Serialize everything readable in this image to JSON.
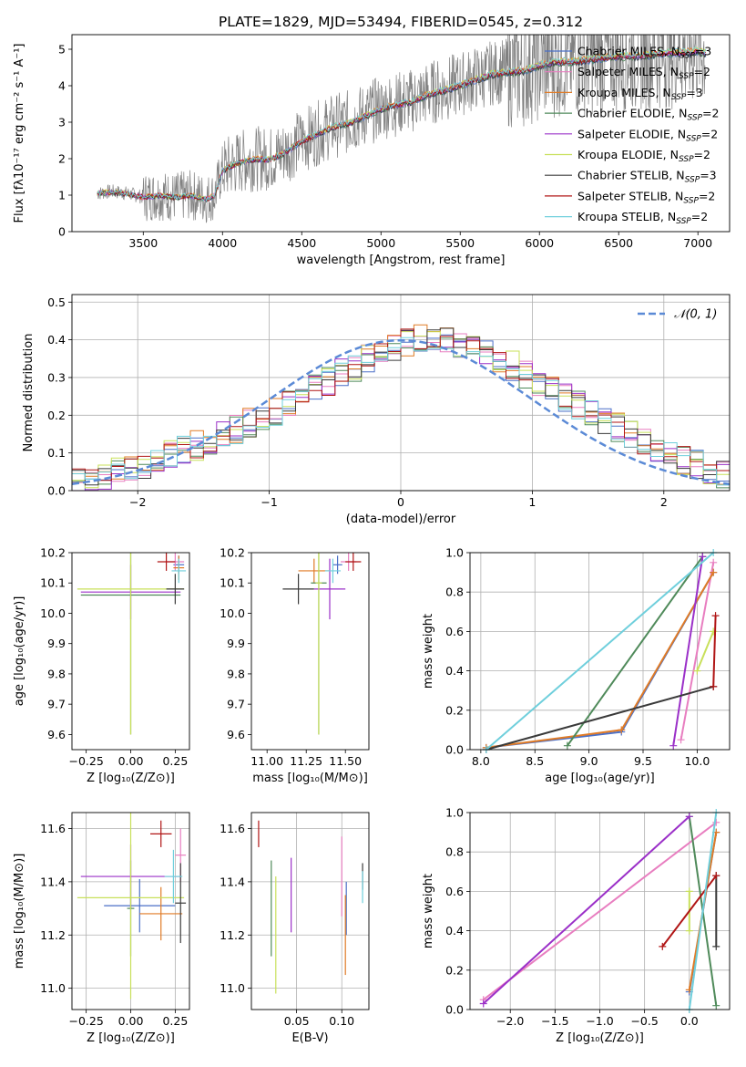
{
  "figure_title": "PLATE=1829, MJD=53494, FIBERID=0545, z=0.312",
  "colors": {
    "Chabrier MILES": "#4a6fc7",
    "Salpeter MILES": "#e87ec0",
    "Kroupa MILES": "#e07b26",
    "Chabrier ELODIE": "#4f8a5a",
    "Salpeter ELODIE": "#9b30c8",
    "Kroupa ELODIE": "#c8e05a",
    "Chabrier STELIB": "#3a3a3a",
    "Salpeter STELIB": "#b01515",
    "Kroupa STELIB": "#6fcfdc",
    "data": "#808080",
    "normal": "#5b8ad6"
  },
  "chart_data": [
    {
      "id": "spectrum",
      "type": "line",
      "xlabel": "wavelength [Angstrom, rest frame]",
      "ylabel": "Flux [f",
      "ylabel_tex": "λ10⁻¹⁷ erg cm⁻² s⁻¹ A⁻¹]",
      "xlim": [
        3050,
        7200
      ],
      "ylim": [
        0,
        5.4
      ],
      "xticks": [
        "3500",
        "4000",
        "4500",
        "5000",
        "5500",
        "6000",
        "6500",
        "7000"
      ],
      "yticks": [
        "0",
        "1",
        "2",
        "3",
        "4",
        "5"
      ],
      "model_flux": {
        "x": [
          3210,
          3300,
          3400,
          3500,
          3600,
          3700,
          3800,
          3900,
          3950,
          4000,
          4100,
          4200,
          4300,
          4400,
          4500,
          4600,
          4700,
          4800,
          4900,
          5000,
          5100,
          5200,
          5300,
          5400,
          5500,
          5600,
          5700,
          5800,
          5900,
          6000,
          6100,
          6200,
          6300,
          6400,
          6500,
          6600,
          6700,
          6800,
          6900,
          7000,
          7050
        ],
        "y": [
          1.05,
          1.1,
          1.05,
          0.95,
          1.0,
          0.95,
          1.0,
          0.9,
          1.0,
          1.7,
          1.9,
          2.0,
          2.0,
          2.2,
          2.5,
          2.7,
          2.9,
          3.0,
          3.2,
          3.4,
          3.5,
          3.6,
          3.8,
          3.9,
          4.05,
          4.2,
          4.35,
          4.4,
          4.45,
          4.6,
          4.7,
          4.7,
          4.75,
          4.8,
          4.85,
          4.85,
          4.9,
          4.95,
          4.95,
          5.0,
          4.95
        ]
      },
      "legend": [
        {
          "name": "Chabrier MILES",
          "nssp": "3"
        },
        {
          "name": "Salpeter MILES",
          "nssp": "2"
        },
        {
          "name": "Kroupa MILES",
          "nssp": "3"
        },
        {
          "name": "Chabrier ELODIE",
          "nssp": "2"
        },
        {
          "name": "Salpeter ELODIE",
          "nssp": "2"
        },
        {
          "name": "Kroupa ELODIE",
          "nssp": "2"
        },
        {
          "name": "Chabrier STELIB",
          "nssp": "3"
        },
        {
          "name": "Salpeter STELIB",
          "nssp": "2"
        },
        {
          "name": "Kroupa STELIB",
          "nssp": "2"
        }
      ],
      "legend_prefix": "N",
      "legend_sub": "SSP"
    },
    {
      "id": "residuals",
      "type": "histogram",
      "xlabel": "(data-model)/error",
      "ylabel": "Normed distribution",
      "xlim": [
        -2.5,
        2.5
      ],
      "ylim": [
        0,
        0.52
      ],
      "xticks": [
        "−2",
        "−1",
        "0",
        "1",
        "2"
      ],
      "yticks": [
        "0.0",
        "0.1",
        "0.2",
        "0.3",
        "0.4",
        "0.5"
      ],
      "legend": "𝒩(0, 1)",
      "bin_width": 0.1,
      "mean_profile": [
        0.02,
        0.03,
        0.04,
        0.05,
        0.06,
        0.07,
        0.08,
        0.1,
        0.11,
        0.12,
        0.13,
        0.15,
        0.16,
        0.18,
        0.19,
        0.21,
        0.23,
        0.25,
        0.27,
        0.29,
        0.31,
        0.33,
        0.35,
        0.37,
        0.38,
        0.39,
        0.4,
        0.4,
        0.4,
        0.39,
        0.38,
        0.37,
        0.35,
        0.33,
        0.31,
        0.29,
        0.27,
        0.25,
        0.23,
        0.21,
        0.19,
        0.17,
        0.15,
        0.13,
        0.11,
        0.1,
        0.08,
        0.07,
        0.05,
        0.04
      ]
    },
    {
      "id": "age-vs-Z",
      "type": "errorbar",
      "xlabel": "Z [log₁₀(Z/Z⊙)]",
      "ylabel": "age  [log₁₀(age/yr)]",
      "xlim": [
        -0.33,
        0.33
      ],
      "ylim": [
        9.55,
        10.2
      ],
      "xticks": [
        "−0.25",
        "0.00",
        "0.25"
      ],
      "yticks": [
        "9.6",
        "9.7",
        "9.8",
        "9.9",
        "10.0",
        "10.1",
        "10.2"
      ],
      "points": [
        {
          "model": "Chabrier MILES",
          "x": 0.27,
          "y": 10.16,
          "xerr": 0.03,
          "yerr": 0.03
        },
        {
          "model": "Salpeter MILES",
          "x": 0.25,
          "y": 10.17,
          "xerr": 0.05,
          "yerr": 0.03
        },
        {
          "model": "Kroupa MILES",
          "x": 0.27,
          "y": 10.15,
          "xerr": 0.03,
          "yerr": 0.04
        },
        {
          "model": "Chabrier ELODIE",
          "x": 0.0,
          "y": 10.06,
          "xerr": 0.28,
          "yerr": 0.46
        },
        {
          "model": "Salpeter ELODIE",
          "x": -0.0,
          "y": 10.07,
          "xerr": 0.28,
          "yerr": 0.09
        },
        {
          "model": "Kroupa ELODIE",
          "x": 0.0,
          "y": 10.08,
          "xerr": 0.3,
          "yerr": 0.48
        },
        {
          "model": "Chabrier STELIB",
          "x": 0.25,
          "y": 10.08,
          "xerr": 0.05,
          "yerr": 0.05
        },
        {
          "model": "Salpeter STELIB",
          "x": 0.2,
          "y": 10.17,
          "xerr": 0.05,
          "yerr": 0.03
        },
        {
          "model": "Kroupa STELIB",
          "x": 0.27,
          "y": 10.14,
          "xerr": 0.04,
          "yerr": 0.04
        }
      ]
    },
    {
      "id": "age-vs-mass",
      "type": "errorbar",
      "xlabel": "mass [log₁₀(M/M⊙)]",
      "ylabel": "",
      "xlim": [
        10.9,
        11.65
      ],
      "ylim": [
        9.55,
        10.2
      ],
      "xticks": [
        "11.00",
        "11.25",
        "11.50"
      ],
      "yticks": [
        "9.6",
        "9.7",
        "9.8",
        "9.9",
        "10.0",
        "10.1",
        "10.2"
      ],
      "points": [
        {
          "model": "Chabrier MILES",
          "x": 11.45,
          "y": 10.16,
          "xerr": 0.03,
          "yerr": 0.03
        },
        {
          "model": "Salpeter MILES",
          "x": 11.52,
          "y": 10.17,
          "xerr": 0.05,
          "yerr": 0.03
        },
        {
          "model": "Kroupa MILES",
          "x": 11.3,
          "y": 10.14,
          "xerr": 0.1,
          "yerr": 0.04
        },
        {
          "model": "Chabrier ELODIE",
          "x": 11.33,
          "y": 10.1,
          "xerr": 0.05,
          "yerr": 0.5
        },
        {
          "model": "Salpeter ELODIE",
          "x": 11.4,
          "y": 10.08,
          "xerr": 0.1,
          "yerr": 0.1
        },
        {
          "model": "Kroupa ELODIE",
          "x": 11.33,
          "y": 10.1,
          "xerr": 0.02,
          "yerr": 0.5
        },
        {
          "model": "Chabrier STELIB",
          "x": 11.2,
          "y": 10.08,
          "xerr": 0.1,
          "yerr": 0.05
        },
        {
          "model": "Salpeter STELIB",
          "x": 11.55,
          "y": 10.17,
          "xerr": 0.05,
          "yerr": 0.03
        },
        {
          "model": "Kroupa STELIB",
          "x": 11.42,
          "y": 10.14,
          "xerr": 0.05,
          "yerr": 0.04
        }
      ]
    },
    {
      "id": "massweight-vs-age",
      "type": "line",
      "xlabel": "age  [log₁₀(age/yr)]",
      "ylabel": "mass weight",
      "xlim": [
        7.9,
        10.3
      ],
      "ylim": [
        0,
        1
      ],
      "xticks": [
        "8.0",
        "8.5",
        "9.0",
        "9.5",
        "10.0"
      ],
      "yticks": [
        "0.0",
        "0.2",
        "0.4",
        "0.6",
        "0.8",
        "1.0"
      ],
      "series": [
        {
          "model": "Chabrier MILES",
          "x": [
            8.05,
            9.3,
            10.15
          ],
          "y": [
            0.01,
            0.09,
            0.9
          ]
        },
        {
          "model": "Salpeter MILES",
          "x": [
            9.85,
            10.15
          ],
          "y": [
            0.05,
            0.95
          ]
        },
        {
          "model": "Kroupa MILES",
          "x": [
            8.05,
            9.3,
            10.15
          ],
          "y": [
            0.01,
            0.1,
            0.9
          ]
        },
        {
          "model": "Chabrier ELODIE",
          "x": [
            8.8,
            10.05
          ],
          "y": [
            0.02,
            0.98
          ]
        },
        {
          "model": "Salpeter ELODIE",
          "x": [
            9.78,
            10.05
          ],
          "y": [
            0.02,
            0.98
          ]
        },
        {
          "model": "Kroupa ELODIE",
          "x": [
            10.0,
            10.15
          ],
          "y": [
            0.4,
            0.6
          ]
        },
        {
          "model": "Chabrier STELIB",
          "x": [
            8.05,
            10.15
          ],
          "y": [
            0.0,
            0.32
          ]
        },
        {
          "model": "Salpeter STELIB",
          "x": [
            10.15,
            10.17
          ],
          "y": [
            0.32,
            0.68
          ]
        },
        {
          "model": "Kroupa STELIB",
          "x": [
            8.05,
            10.15
          ],
          "y": [
            0.0,
            1.0
          ]
        }
      ]
    },
    {
      "id": "mass-vs-Z",
      "type": "errorbar",
      "xlabel": "Z [log₁₀(Z/Z⊙)]",
      "ylabel": "mass [log₁₀(M/M⊙)]",
      "xlim": [
        -0.33,
        0.33
      ],
      "ylim": [
        10.92,
        11.66
      ],
      "xticks": [
        "−0.25",
        "0.00",
        "0.25"
      ],
      "yticks": [
        "11.0",
        "11.2",
        "11.4",
        "11.6"
      ],
      "points": [
        {
          "model": "Chabrier MILES",
          "x": 0.05,
          "y": 11.31,
          "xerr": 0.2,
          "yerr": 0.1
        },
        {
          "model": "Salpeter MILES",
          "x": 0.28,
          "y": 11.5,
          "xerr": 0.03,
          "yerr": 0.1
        },
        {
          "model": "Kroupa MILES",
          "x": 0.17,
          "y": 11.28,
          "xerr": 0.12,
          "yerr": 0.1
        },
        {
          "model": "Chabrier ELODIE",
          "x": 0.0,
          "y": 11.3,
          "xerr": 0.02,
          "yerr": 0.18
        },
        {
          "model": "Salpeter ELODIE",
          "x": -0.0,
          "y": 11.42,
          "xerr": 0.28,
          "yerr": 0.12
        },
        {
          "model": "Kroupa ELODIE",
          "x": 0.0,
          "y": 11.34,
          "xerr": 0.3,
          "yerr": 0.38
        },
        {
          "model": "Chabrier STELIB",
          "x": 0.28,
          "y": 11.32,
          "xerr": 0.03,
          "yerr": 0.15
        },
        {
          "model": "Salpeter STELIB",
          "x": 0.17,
          "y": 11.58,
          "xerr": 0.06,
          "yerr": 0.05
        },
        {
          "model": "Kroupa STELIB",
          "x": 0.24,
          "y": 11.42,
          "xerr": 0.05,
          "yerr": 0.1
        }
      ]
    },
    {
      "id": "mass-vs-ebv",
      "type": "errorbar",
      "xlabel": "E(B-V)",
      "ylabel": "",
      "xlim": [
        0.0,
        0.13
      ],
      "ylim": [
        10.92,
        11.66
      ],
      "xticks": [
        "0.05",
        "0.10"
      ],
      "yticks": [
        "11.0",
        "11.2",
        "11.4",
        "11.6"
      ],
      "points": [
        {
          "model": "Chabrier MILES",
          "x": 0.105,
          "y": 11.3,
          "xerr": 0.0,
          "yerr": 0.1
        },
        {
          "model": "Salpeter MILES",
          "x": 0.1,
          "y": 11.42,
          "xerr": 0.0,
          "yerr": 0.15
        },
        {
          "model": "Kroupa MILES",
          "x": 0.104,
          "y": 11.2,
          "xerr": 0.0,
          "yerr": 0.15
        },
        {
          "model": "Chabrier ELODIE",
          "x": 0.022,
          "y": 11.3,
          "xerr": 0.0,
          "yerr": 0.18
        },
        {
          "model": "Salpeter ELODIE",
          "x": 0.044,
          "y": 11.35,
          "xerr": 0.0,
          "yerr": 0.14
        },
        {
          "model": "Kroupa ELODIE",
          "x": 0.027,
          "y": 11.2,
          "xerr": 0.0,
          "yerr": 0.22
        },
        {
          "model": "Chabrier STELIB",
          "x": 0.123,
          "y": 11.42,
          "xerr": 0.0,
          "yerr": 0.05
        },
        {
          "model": "Salpeter STELIB",
          "x": 0.008,
          "y": 11.58,
          "xerr": 0.0,
          "yerr": 0.05
        },
        {
          "model": "Kroupa STELIB",
          "x": 0.123,
          "y": 11.38,
          "xerr": 0.0,
          "yerr": 0.06
        }
      ]
    },
    {
      "id": "massweight-vs-Z",
      "type": "line",
      "xlabel": "Z [log₁₀(Z/Z⊙)]",
      "ylabel": "mass weight",
      "xlim": [
        -2.45,
        0.45
      ],
      "ylim": [
        0,
        1
      ],
      "xticks": [
        "−2.0",
        "−1.5",
        "−1.0",
        "−0.5",
        "0.0"
      ],
      "yticks": [
        "0.0",
        "0.2",
        "0.4",
        "0.6",
        "0.8",
        "1.0"
      ],
      "series": [
        {
          "model": "Chabrier MILES",
          "x": [
            0.0,
            0.3
          ],
          "y": [
            0.09,
            0.9
          ]
        },
        {
          "model": "Salpeter MILES",
          "x": [
            -2.3,
            0.3
          ],
          "y": [
            0.05,
            0.95
          ]
        },
        {
          "model": "Kroupa MILES",
          "x": [
            0.0,
            0.3
          ],
          "y": [
            0.1,
            0.9
          ]
        },
        {
          "model": "Chabrier ELODIE",
          "x": [
            0.0,
            0.3
          ],
          "y": [
            0.98,
            0.02
          ]
        },
        {
          "model": "Salpeter ELODIE",
          "x": [
            -2.3,
            0.0
          ],
          "y": [
            0.03,
            0.98
          ]
        },
        {
          "model": "Kroupa ELODIE",
          "x": [
            0.0,
            0.0
          ],
          "y": [
            0.4,
            0.6
          ]
        },
        {
          "model": "Chabrier STELIB",
          "x": [
            0.3,
            0.3
          ],
          "y": [
            0.32,
            0.68
          ]
        },
        {
          "model": "Salpeter STELIB",
          "x": [
            -0.3,
            0.3
          ],
          "y": [
            0.32,
            0.68
          ]
        },
        {
          "model": "Kroupa STELIB",
          "x": [
            0.0,
            0.3
          ],
          "y": [
            0.0,
            1.0
          ]
        }
      ]
    }
  ]
}
